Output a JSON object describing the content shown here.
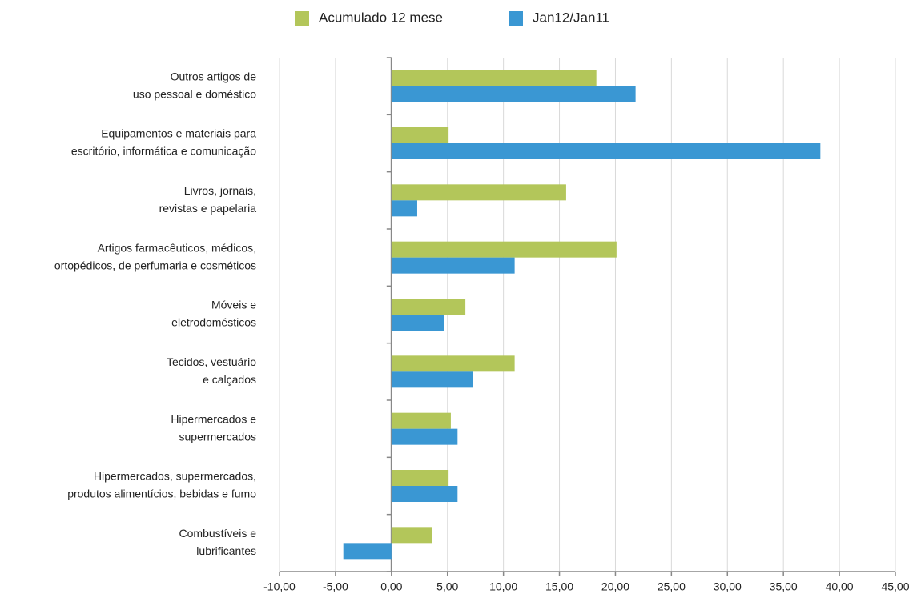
{
  "chart_data": {
    "type": "hbar",
    "categories": [
      [
        "Outros artigos de",
        "uso pessoal e doméstico"
      ],
      [
        "Equipamentos e materiais para",
        "escritório, informática e comunicação"
      ],
      [
        "Livros, jornais,",
        "revistas e papelaria"
      ],
      [
        "Artigos farmacêuticos, médicos,",
        "ortopédicos, de perfumaria e cosméticos"
      ],
      [
        "Móveis e",
        "eletrodomésticos"
      ],
      [
        "Tecidos, vestuário",
        "e calçados"
      ],
      [
        "Hipermercados e",
        "supermercados"
      ],
      [
        "Hipermercados, supermercados,",
        "produtos alimentícios, bebidas e fumo"
      ],
      [
        "Combustíveis e",
        "lubrificantes"
      ]
    ],
    "series": [
      {
        "name": "Acumulado 12 mese",
        "color": "#b3c65a",
        "values": [
          18.3,
          5.1,
          15.6,
          20.1,
          6.6,
          11.0,
          5.3,
          5.1,
          3.6
        ]
      },
      {
        "name": "Jan12/Jan11",
        "color": "#3a97d3",
        "values": [
          21.8,
          38.3,
          2.3,
          11.0,
          4.7,
          7.3,
          5.9,
          5.9,
          -4.3
        ]
      }
    ],
    "xlim": [
      -10,
      45
    ],
    "xticks": [
      {
        "value": -10,
        "label": "-10,00"
      },
      {
        "value": -5,
        "label": "-5,00"
      },
      {
        "value": 0,
        "label": "0,00"
      },
      {
        "value": 5,
        "label": "5,00"
      },
      {
        "value": 10,
        "label": "10,00"
      },
      {
        "value": 15,
        "label": "15,00"
      },
      {
        "value": 20,
        "label": "20,00"
      },
      {
        "value": 25,
        "label": "25,00"
      },
      {
        "value": 30,
        "label": "30,00"
      },
      {
        "value": 35,
        "label": "35,00"
      },
      {
        "value": 40,
        "label": "40,00"
      },
      {
        "value": 45,
        "label": "45,00"
      }
    ],
    "grid": true,
    "legend": "top"
  }
}
